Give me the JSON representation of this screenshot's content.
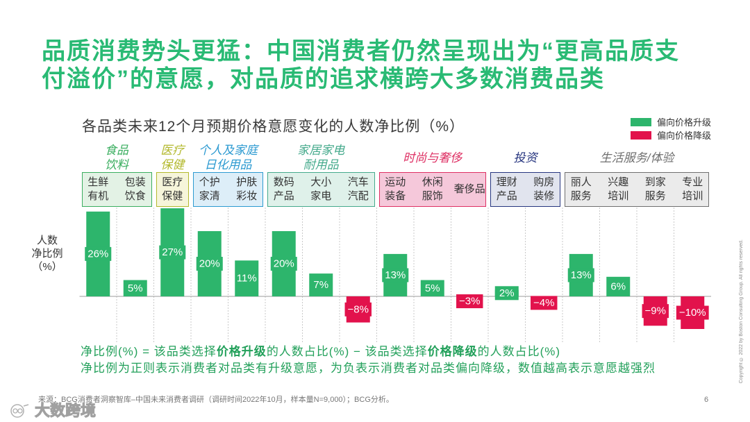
{
  "slide": {
    "title_lines": [
      "品质消费势头更猛：中国消费者仍然呈现出为“更高品质支",
      "付溢价”的意愿，对品质的追求横跨大多数消费品类"
    ],
    "title_color": "#29BA74",
    "source": "来源：BCG消费者洞察智库–中国未来消费者调研（调研时间2022年10月，样本量N=9,000）；BCG分析。",
    "page_number": "6",
    "copyright": "Copyright © 2022 by Boston Consulting Group. All rights reserved.",
    "watermark": "大数跨境"
  },
  "chart_data": {
    "type": "bar",
    "title": "各品类未来12个月预期价格意愿变化的人数净比例（%）",
    "ylabel": [
      "人数",
      "净比例",
      "（%）"
    ],
    "grid": false,
    "legend_position": "top-right",
    "series": [
      {
        "name": "偏向价格升级",
        "color": "#2DB56C"
      },
      {
        "name": "偏向价格降级",
        "color": "#E2124C"
      }
    ],
    "groups": [
      {
        "label": [
          "食品",
          "饮料"
        ],
        "color": "#3AAE5F",
        "fill": "#E3F2E5",
        "categories": [
          {
            "label": [
              "生鲜",
              "有机"
            ],
            "value": 26,
            "value_label": "26%"
          },
          {
            "label": [
              "包装",
              "饮食"
            ],
            "value": 5,
            "value_label": "5%"
          }
        ]
      },
      {
        "label": [
          "医疗",
          "保健"
        ],
        "color": "#B3B92E",
        "fill": "#F6F5DA",
        "categories": [
          {
            "label": [
              "医疗",
              "保健"
            ],
            "value": 27,
            "value_label": "27%"
          }
        ]
      },
      {
        "label": [
          "个人及家庭",
          "日化用品"
        ],
        "color": "#2C9AD1",
        "fill": "#DDEEF8",
        "categories": [
          {
            "label": [
              "个护",
              "家清"
            ],
            "value": 20,
            "value_label": "20%"
          },
          {
            "label": [
              "护肤",
              "彩妆"
            ],
            "value": 11,
            "value_label": "11%"
          }
        ]
      },
      {
        "label": [
          "家居家电",
          "耐用品"
        ],
        "color": "#45AA8C",
        "fill": "#DFF1EA",
        "categories": [
          {
            "label": [
              "数码",
              "产品"
            ],
            "value": 20,
            "value_label": "20%"
          },
          {
            "label": [
              "大小",
              "家电"
            ],
            "value": 7,
            "value_label": "7%"
          },
          {
            "label": [
              "汽车",
              "汽配"
            ],
            "value": -8,
            "value_label": "−8%"
          }
        ]
      },
      {
        "label": [
          "时尚与奢侈"
        ],
        "color": "#DE2F63",
        "fill": "#F5C8DA",
        "categories": [
          {
            "label": [
              "运动",
              "装备"
            ],
            "value": 13,
            "value_label": "13%"
          },
          {
            "label": [
              "休闲",
              "服饰"
            ],
            "value": 5,
            "value_label": "5%"
          },
          {
            "label": [
              "奢侈品"
            ],
            "value": -3,
            "value_label": "−3%"
          }
        ]
      },
      {
        "label": [
          "投资"
        ],
        "color": "#26357F",
        "fill": "#E1E4EE",
        "categories": [
          {
            "label": [
              "理财",
              "产品"
            ],
            "value": 2,
            "value_label": "2%"
          },
          {
            "label": [
              "购房",
              "装修"
            ],
            "value": -4,
            "value_label": "−4%"
          }
        ]
      },
      {
        "label": [
          "生活服务/体验"
        ],
        "color": "#6F6F6F",
        "fill": "#EBEBEB",
        "categories": [
          {
            "label": [
              "丽人",
              "服务"
            ],
            "value": 13,
            "value_label": "13%"
          },
          {
            "label": [
              "兴趣",
              "培训"
            ],
            "value": 6,
            "value_label": "6%"
          },
          {
            "label": [
              "到家",
              "服务"
            ],
            "value": -9,
            "value_label": "−9%"
          },
          {
            "label": [
              "专业",
              "培训"
            ],
            "value": -10,
            "value_label": "−10%"
          }
        ]
      }
    ]
  },
  "formula": {
    "segments": [
      "净比例(%) = 该品类选择",
      "价格升级",
      "的人数占比(%) − 该品类选择",
      "价格降级",
      "的人数占比(%)"
    ],
    "note": "净比例为正则表示消费者对品类有升级意愿，为负表示消费者对品类偏向降级，数值越高表示意愿越强烈",
    "color": "#22A05A"
  }
}
